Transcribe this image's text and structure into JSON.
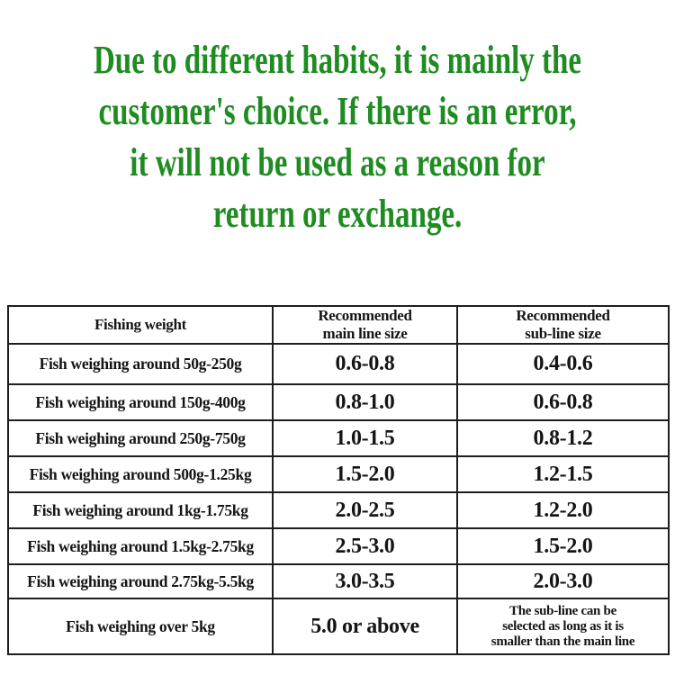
{
  "notice": {
    "color": "#1f8c22",
    "lines": [
      "Due to different habits, it is mainly the",
      "customer's choice. If there is an error,",
      "it will not be used as a reason for",
      "return or exchange."
    ]
  },
  "table": {
    "headers": [
      {
        "label": "Fishing weight"
      },
      {
        "line1": "Recommended",
        "line2": "main line size"
      },
      {
        "line1": "Recommended",
        "line2": "sub-line size"
      }
    ],
    "rows": [
      {
        "weight": "Fish weighing around 50g-250g",
        "main": "0.6-0.8",
        "sub": "0.4-0.6"
      },
      {
        "weight": "Fish weighing around 150g-400g",
        "main": "0.8-1.0",
        "sub": "0.6-0.8"
      },
      {
        "weight": "Fish weighing around 250g-750g",
        "main": "1.0-1.5",
        "sub": "0.8-1.2"
      },
      {
        "weight": "Fish weighing around 500g-1.25kg",
        "main": "1.5-2.0",
        "sub": "1.2-1.5"
      },
      {
        "weight": "Fish weighing around 1kg-1.75kg",
        "main": "2.0-2.5",
        "sub": "1.2-2.0"
      },
      {
        "weight": "Fish weighing around 1.5kg-2.75kg",
        "main": "2.5-3.0",
        "sub": "1.5-2.0"
      },
      {
        "weight": "Fish weighing around 2.75kg-5.5kg",
        "main": "3.0-3.5",
        "sub": "2.0-3.0"
      },
      {
        "weight": "Fish weighing over 5kg",
        "main": "5.0 or above",
        "sub_lines": [
          "The sub-line can be",
          "selected as long as it is",
          "smaller than the main line"
        ]
      }
    ],
    "border_color": "#1d1d1d"
  }
}
